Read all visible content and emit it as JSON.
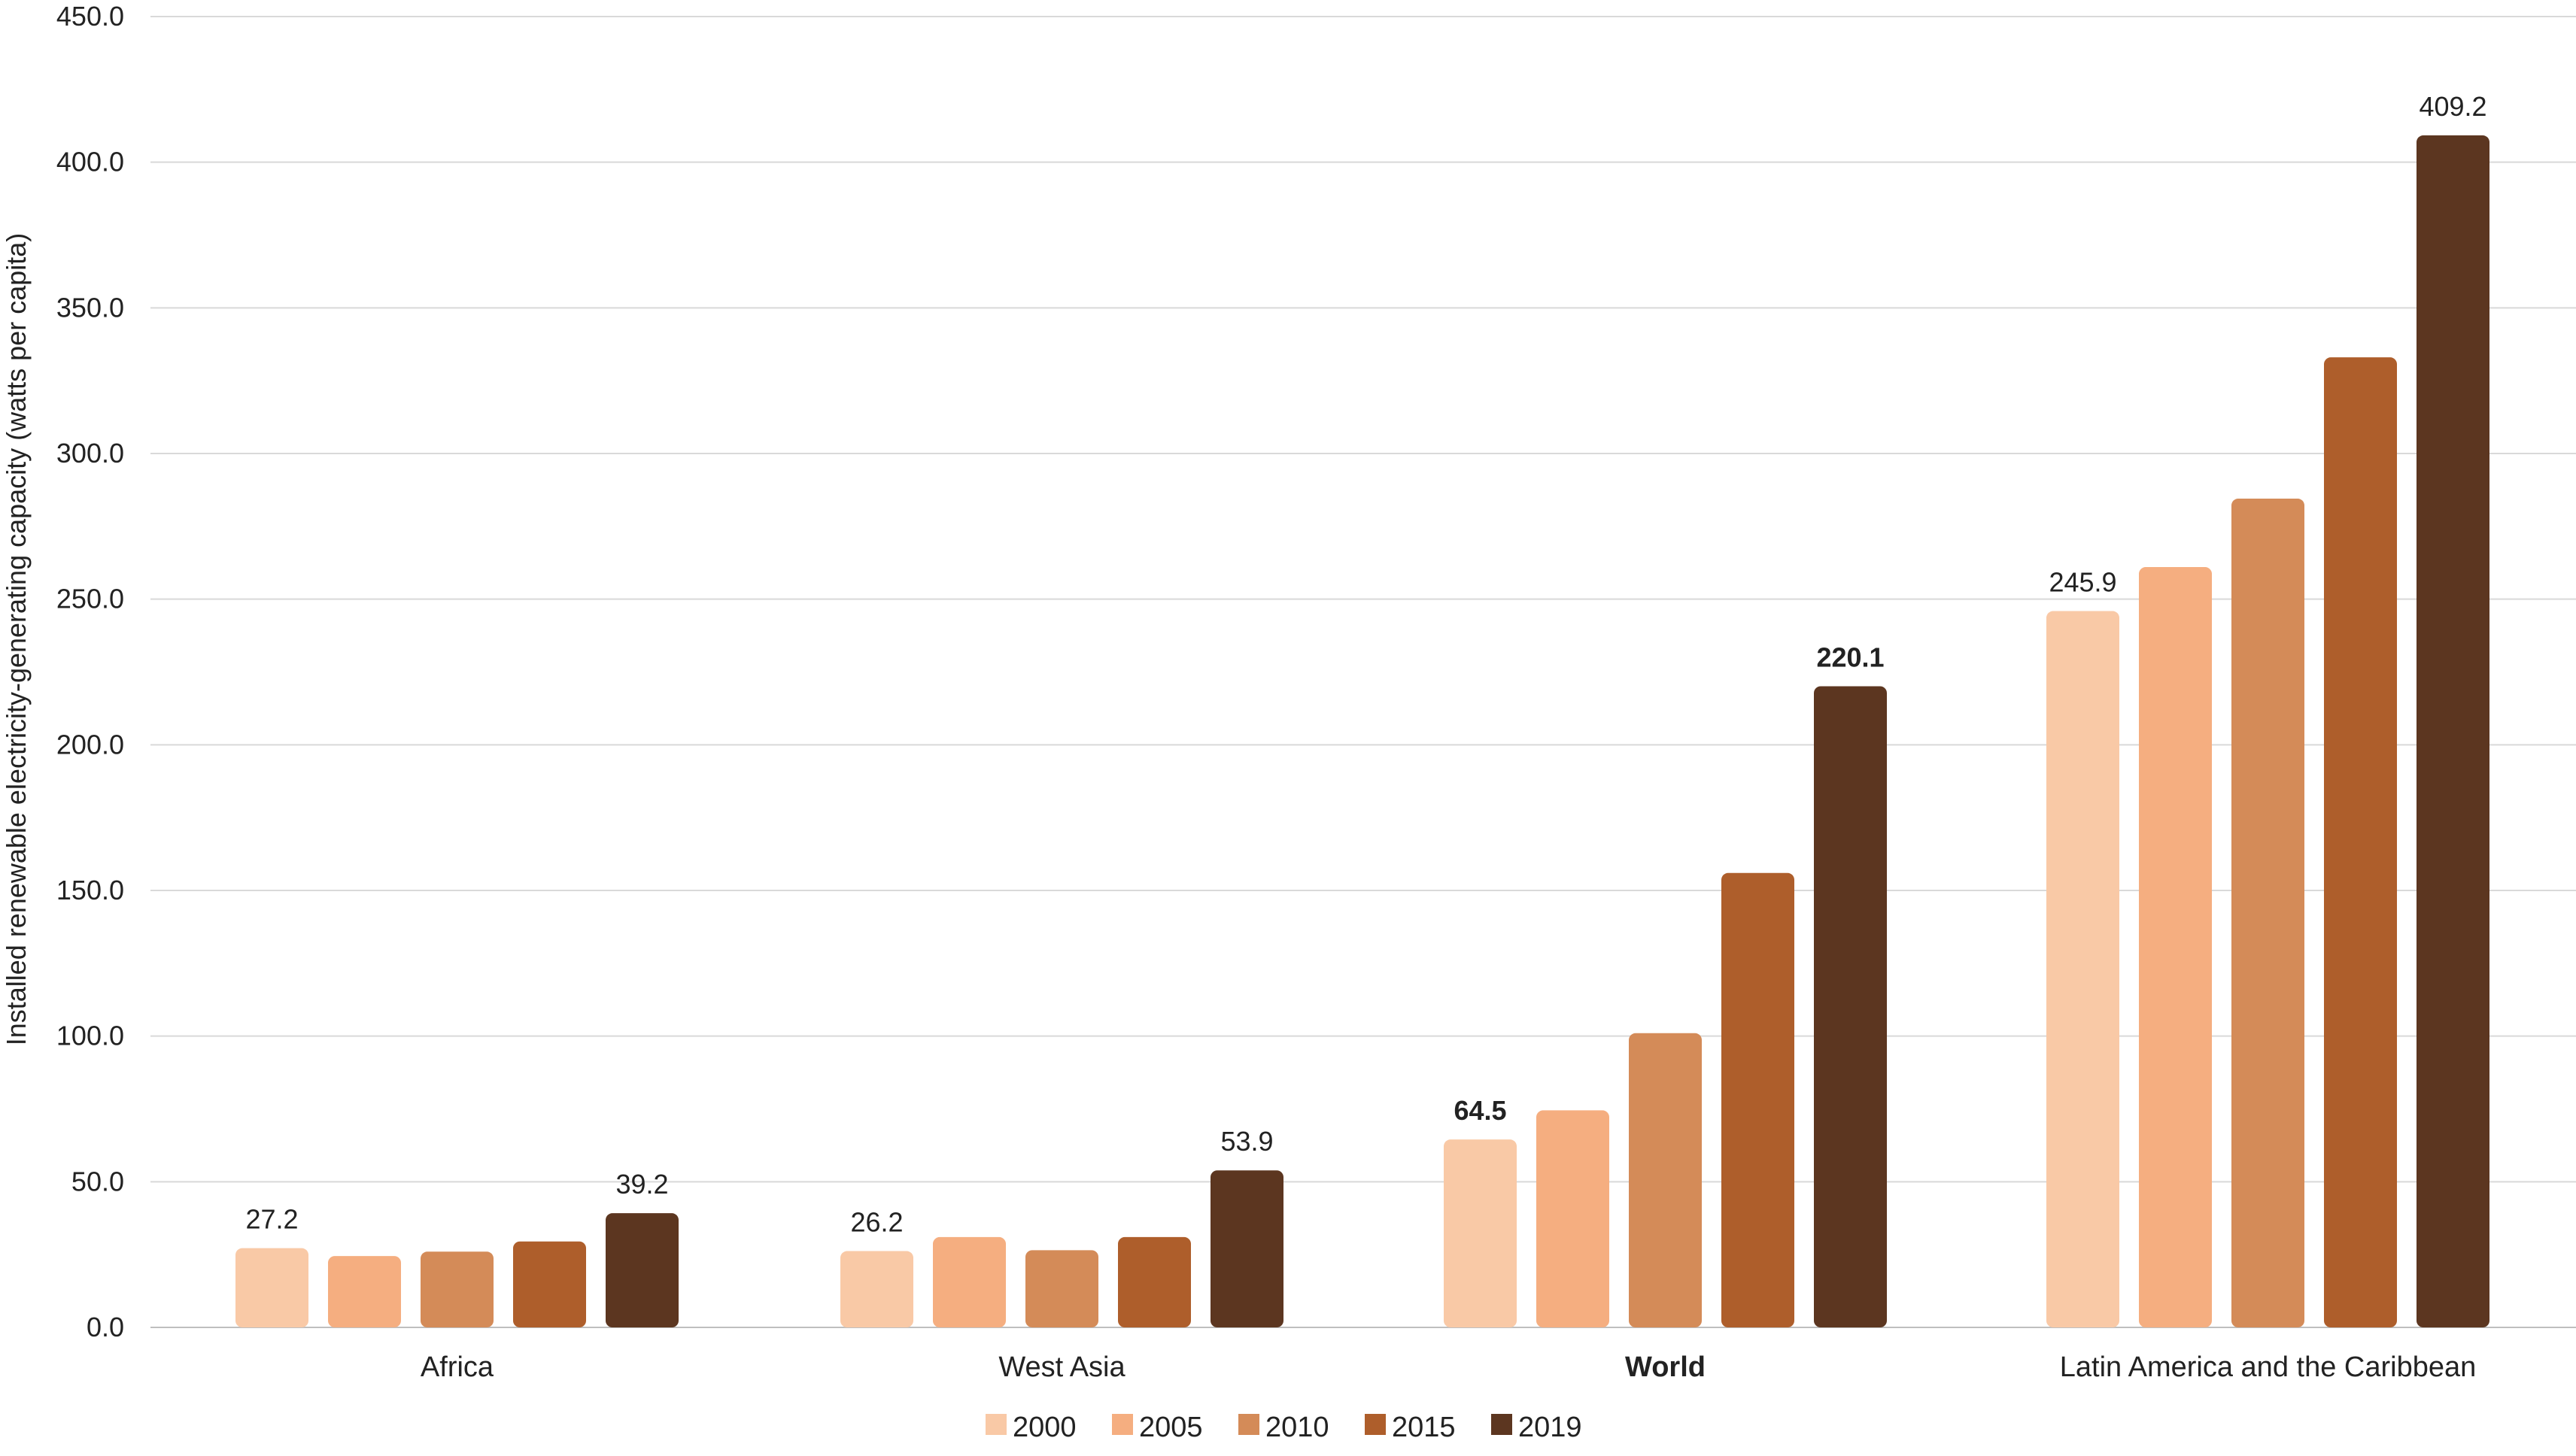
{
  "chart_data": {
    "type": "bar",
    "title": "",
    "xlabel": "",
    "ylabel": "Installed renewable electricity-generating  capacity (watts per capita)",
    "ylim": [
      0,
      450
    ],
    "yticks": [
      "0.0",
      "50.0",
      "100.0",
      "150.0",
      "200.0",
      "250.0",
      "300.0",
      "350.0",
      "400.0",
      "450.0"
    ],
    "ytick_values": [
      0,
      50,
      100,
      150,
      200,
      250,
      300,
      350,
      400,
      450
    ],
    "grid": true,
    "legend_position": "bottom",
    "categories": [
      "Africa",
      "West Asia",
      "World",
      "Latin America and the Caribbean"
    ],
    "bold_categories": [
      "World"
    ],
    "series": [
      {
        "name": "2000",
        "color": "#f9c9a6",
        "values": [
          27.2,
          26.2,
          64.5,
          245.9
        ]
      },
      {
        "name": "2005",
        "color": "#f5ae80",
        "values": [
          24.5,
          31.0,
          74.5,
          261.0
        ]
      },
      {
        "name": "2010",
        "color": "#d48b58",
        "values": [
          26.0,
          26.5,
          101.0,
          284.5
        ]
      },
      {
        "name": "2015",
        "color": "#ae5e2b",
        "values": [
          29.5,
          31.0,
          156.0,
          333.0
        ]
      },
      {
        "name": "2019",
        "color": "#5c3620",
        "values": [
          39.2,
          53.9,
          220.1,
          409.2
        ]
      }
    ],
    "data_labels": [
      {
        "category": 0,
        "series": 0,
        "text": "27.2"
      },
      {
        "category": 0,
        "series": 4,
        "text": "39.2"
      },
      {
        "category": 1,
        "series": 0,
        "text": "26.2"
      },
      {
        "category": 1,
        "series": 4,
        "text": "53.9"
      },
      {
        "category": 2,
        "series": 0,
        "text": "64.5",
        "bold": true
      },
      {
        "category": 2,
        "series": 4,
        "text": "220.1",
        "bold": true
      },
      {
        "category": 3,
        "series": 0,
        "text": "245.9"
      },
      {
        "category": 3,
        "series": 4,
        "text": "409.2"
      }
    ]
  }
}
